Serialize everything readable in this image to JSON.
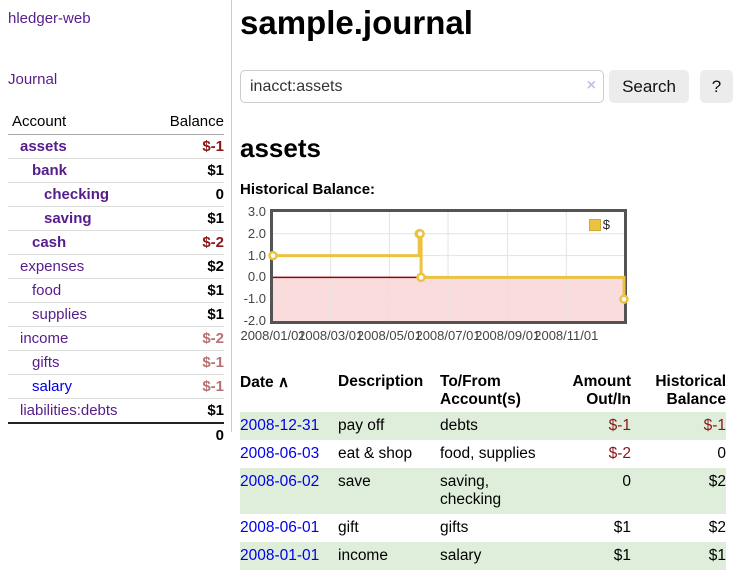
{
  "sidebar": {
    "brand": "hledger-web",
    "journal_link": "Journal",
    "table": {
      "headers": {
        "account": "Account",
        "balance": "Balance"
      },
      "rows": [
        {
          "name": "assets",
          "level": 0,
          "bold": true,
          "link_color": "purple",
          "balance": "$-1",
          "balance_color": "negative"
        },
        {
          "name": "bank",
          "level": 1,
          "bold": true,
          "link_color": "purple",
          "balance": "$1",
          "balance_color": "normal"
        },
        {
          "name": "checking",
          "level": 2,
          "bold": true,
          "link_color": "purple",
          "balance": "0",
          "balance_color": "normal"
        },
        {
          "name": "saving",
          "level": 2,
          "bold": true,
          "link_color": "purple",
          "balance": "$1",
          "balance_color": "normal"
        },
        {
          "name": "cash",
          "level": 1,
          "bold": true,
          "link_color": "purple",
          "balance": "$-2",
          "balance_color": "negative"
        },
        {
          "name": "expenses",
          "level": 0,
          "bold": false,
          "link_color": "purple",
          "balance": "$2",
          "balance_color": "normal"
        },
        {
          "name": "food",
          "level": 1,
          "bold": false,
          "link_color": "purple",
          "balance": "$1",
          "balance_color": "normal"
        },
        {
          "name": "supplies",
          "level": 1,
          "bold": false,
          "link_color": "purple",
          "balance": "$1",
          "balance_color": "normal"
        },
        {
          "name": "income",
          "level": 0,
          "bold": false,
          "link_color": "purple",
          "balance": "$-2",
          "balance_color": "negative-muted"
        },
        {
          "name": "gifts",
          "level": 1,
          "bold": false,
          "link_color": "purple",
          "balance": "$-1",
          "balance_color": "negative-muted"
        },
        {
          "name": "salary",
          "level": 1,
          "bold": false,
          "link_color": "blue",
          "balance": "$-1",
          "balance_color": "negative-muted"
        },
        {
          "name": "liabilities:debts",
          "level": 0,
          "bold": false,
          "link_color": "purple",
          "balance": "$1",
          "balance_color": "normal"
        }
      ],
      "total": "0"
    }
  },
  "main": {
    "title": "sample.journal",
    "search": {
      "value": "inacct:assets",
      "clear_icon": "×",
      "button_label": "Search",
      "help_label": "?"
    },
    "account_heading": "assets",
    "register": {
      "headers": {
        "date": "Date",
        "sort_arrow": "∧",
        "description": "Description",
        "accounts": "To/From Account(s)",
        "amount": "Amount Out/In",
        "balance": "Historical Balance"
      },
      "rows": [
        {
          "date": "2008-12-31",
          "description": "pay off",
          "accounts": "debts",
          "amount": "$-1",
          "amount_negative": true,
          "balance": "$-1",
          "balance_negative": true
        },
        {
          "date": "2008-06-03",
          "description": "eat & shop",
          "accounts": "food, supplies",
          "amount": "$-2",
          "amount_negative": true,
          "balance": "0",
          "balance_negative": false
        },
        {
          "date": "2008-06-02",
          "description": "save",
          "accounts": "saving, checking",
          "amount": "0",
          "amount_negative": false,
          "balance": "$2",
          "balance_negative": false
        },
        {
          "date": "2008-06-01",
          "description": "gift",
          "accounts": "gifts",
          "amount": "$1",
          "amount_negative": false,
          "balance": "$2",
          "balance_negative": false
        },
        {
          "date": "2008-01-01",
          "description": "income",
          "accounts": "salary",
          "amount": "$1",
          "amount_negative": false,
          "balance": "$1",
          "balance_negative": false
        }
      ]
    }
  },
  "chart_data": {
    "type": "line",
    "title": "Historical Balance:",
    "series": [
      {
        "name": "$",
        "color": "#EDC240",
        "steps": true,
        "points": [
          [
            "2008-01-01",
            1
          ],
          [
            "2008-06-01",
            2
          ],
          [
            "2008-06-02",
            2
          ],
          [
            "2008-06-03",
            0
          ],
          [
            "2008-12-31",
            -1
          ]
        ]
      }
    ],
    "x_ticks": [
      "2008/01/01",
      "2008/03/01",
      "2008/05/01",
      "2008/07/01",
      "2008/09/01",
      "2008/11/01"
    ],
    "y_ticks": [
      3.0,
      2.0,
      1.0,
      0.0,
      -1.0,
      -2.0
    ],
    "xlim": [
      "2008-01-01",
      "2008-12-31"
    ],
    "ylim": [
      -2,
      3
    ],
    "grid": true,
    "legend_position": "top-right",
    "colors": {
      "grid": "#e3e3e3",
      "border": "#545454",
      "zero_line": "#990000",
      "negative_region": "#fbdcdc"
    }
  }
}
